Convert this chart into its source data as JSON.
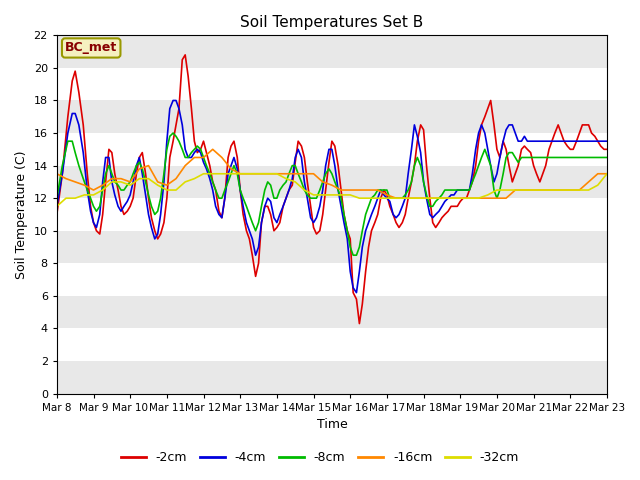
{
  "title": "Soil Temperatures Set B",
  "xlabel": "Time",
  "ylabel": "Soil Temperature (C)",
  "annotation": "BC_met",
  "ylim": [
    0,
    22
  ],
  "yticks": [
    0,
    2,
    4,
    6,
    8,
    10,
    12,
    14,
    16,
    18,
    20,
    22
  ],
  "x_labels": [
    "Mar 8",
    "Mar 9",
    "Mar 10",
    "Mar 11",
    "Mar 12",
    "Mar 13",
    "Mar 14",
    "Mar 15",
    "Mar 16",
    "Mar 17",
    "Mar 18",
    "Mar 19",
    "Mar 20",
    "Mar 21",
    "Mar 22",
    "Mar 23"
  ],
  "fig_bg": "#ffffff",
  "plot_bg": "#ffffff",
  "band_colors": [
    "#e8e8e8",
    "#ffffff"
  ],
  "series": {
    "-2cm": {
      "color": "#dd0000",
      "lw": 1.2,
      "data_x": [
        0,
        0.15,
        0.3,
        0.42,
        0.5,
        0.6,
        0.72,
        0.83,
        0.92,
        1.0,
        1.08,
        1.17,
        1.25,
        1.33,
        1.42,
        1.5,
        1.58,
        1.67,
        1.75,
        1.83,
        1.92,
        2.0,
        2.08,
        2.17,
        2.25,
        2.33,
        2.42,
        2.5,
        2.58,
        2.67,
        2.75,
        2.83,
        2.92,
        3.0,
        3.08,
        3.17,
        3.25,
        3.33,
        3.42,
        3.5,
        3.58,
        3.67,
        3.75,
        3.83,
        3.92,
        4.0,
        4.08,
        4.17,
        4.25,
        4.33,
        4.42,
        4.5,
        4.58,
        4.67,
        4.75,
        4.83,
        4.92,
        5.0,
        5.08,
        5.17,
        5.25,
        5.33,
        5.42,
        5.5,
        5.58,
        5.67,
        5.75,
        5.83,
        5.92,
        6.0,
        6.08,
        6.17,
        6.25,
        6.33,
        6.42,
        6.5,
        6.58,
        6.67,
        6.75,
        6.83,
        6.92,
        7.0,
        7.08,
        7.17,
        7.25,
        7.33,
        7.42,
        7.5,
        7.58,
        7.67,
        7.75,
        7.83,
        7.92,
        8.0,
        8.08,
        8.17,
        8.25,
        8.33,
        8.42,
        8.5,
        8.58,
        8.67,
        8.75,
        8.83,
        8.92,
        9.0,
        9.08,
        9.17,
        9.25,
        9.33,
        9.42,
        9.5,
        9.58,
        9.67,
        9.75,
        9.83,
        9.92,
        10.0,
        10.08,
        10.17,
        10.25,
        10.33,
        10.42,
        10.5,
        10.58,
        10.67,
        10.75,
        10.83,
        10.92,
        11.0,
        11.08,
        11.17,
        11.25,
        11.33,
        11.42,
        11.5,
        11.58,
        11.67,
        11.75,
        11.83,
        11.92,
        12.0,
        12.08,
        12.17,
        12.25,
        12.33,
        12.42,
        12.5,
        12.58,
        12.67,
        12.75,
        12.83,
        12.92,
        13.0,
        13.08,
        13.17,
        13.25,
        13.33,
        13.42,
        13.5,
        13.58,
        13.67,
        13.75,
        13.83,
        13.92,
        14.0,
        14.08,
        14.17,
        14.25,
        14.33,
        14.42,
        14.5,
        14.58,
        14.67,
        14.75,
        14.83,
        14.92,
        15.0
      ],
      "data_y": [
        11.0,
        13.5,
        17.0,
        19.2,
        19.8,
        18.5,
        16.5,
        13.5,
        11.5,
        10.5,
        10.0,
        9.8,
        11.0,
        13.0,
        15.0,
        14.8,
        13.5,
        12.5,
        11.5,
        11.0,
        11.2,
        11.5,
        12.0,
        13.5,
        14.5,
        14.8,
        13.5,
        12.0,
        10.8,
        10.0,
        9.5,
        9.8,
        10.5,
        12.0,
        14.5,
        15.5,
        16.5,
        17.5,
        20.5,
        20.8,
        19.5,
        17.5,
        15.5,
        14.8,
        15.0,
        15.5,
        14.8,
        14.0,
        13.0,
        12.5,
        11.2,
        10.8,
        12.0,
        14.5,
        15.2,
        15.5,
        14.5,
        12.5,
        11.0,
        10.0,
        9.5,
        8.5,
        7.2,
        8.0,
        10.5,
        11.5,
        11.5,
        11.0,
        10.0,
        10.2,
        10.5,
        11.5,
        12.0,
        12.5,
        12.8,
        14.2,
        15.5,
        15.2,
        14.5,
        13.0,
        11.5,
        10.2,
        9.8,
        10.0,
        11.0,
        12.5,
        14.2,
        15.5,
        15.2,
        14.0,
        12.5,
        11.0,
        10.0,
        9.5,
        6.2,
        5.8,
        4.3,
        5.5,
        7.5,
        9.0,
        10.0,
        10.5,
        11.0,
        12.0,
        12.5,
        12.2,
        11.5,
        11.0,
        10.5,
        10.2,
        10.5,
        11.0,
        12.0,
        13.0,
        14.0,
        15.5,
        16.5,
        16.2,
        14.0,
        12.0,
        10.5,
        10.2,
        10.5,
        10.8,
        11.0,
        11.2,
        11.5,
        11.5,
        11.5,
        11.8,
        12.0,
        12.0,
        12.5,
        13.0,
        14.0,
        15.5,
        16.5,
        17.0,
        17.5,
        18.0,
        16.5,
        15.0,
        14.5,
        15.5,
        15.0,
        14.0,
        13.0,
        13.5,
        14.0,
        15.0,
        15.2,
        15.0,
        14.8,
        14.0,
        13.5,
        13.0,
        13.5,
        14.0,
        15.0,
        15.5,
        16.0,
        16.5,
        16.0,
        15.5,
        15.2,
        15.0,
        15.0,
        15.5,
        16.0,
        16.5,
        16.5,
        16.5,
        16.0,
        15.8,
        15.5,
        15.2,
        15.0,
        15.0
      ]
    },
    "-4cm": {
      "color": "#0000dd",
      "lw": 1.2,
      "data_x": [
        0,
        0.15,
        0.3,
        0.42,
        0.5,
        0.6,
        0.72,
        0.83,
        0.92,
        1.0,
        1.08,
        1.17,
        1.25,
        1.33,
        1.42,
        1.5,
        1.58,
        1.67,
        1.75,
        1.83,
        1.92,
        2.0,
        2.08,
        2.17,
        2.25,
        2.33,
        2.42,
        2.5,
        2.58,
        2.67,
        2.75,
        2.83,
        2.92,
        3.0,
        3.08,
        3.17,
        3.25,
        3.33,
        3.42,
        3.5,
        3.58,
        3.67,
        3.75,
        3.83,
        3.92,
        4.0,
        4.08,
        4.17,
        4.25,
        4.33,
        4.42,
        4.5,
        4.58,
        4.67,
        4.75,
        4.83,
        4.92,
        5.0,
        5.08,
        5.17,
        5.25,
        5.33,
        5.42,
        5.5,
        5.58,
        5.67,
        5.75,
        5.83,
        5.92,
        6.0,
        6.08,
        6.17,
        6.25,
        6.33,
        6.42,
        6.5,
        6.58,
        6.67,
        6.75,
        6.83,
        6.92,
        7.0,
        7.08,
        7.17,
        7.25,
        7.33,
        7.42,
        7.5,
        7.58,
        7.67,
        7.75,
        7.83,
        7.92,
        8.0,
        8.08,
        8.17,
        8.25,
        8.33,
        8.42,
        8.5,
        8.58,
        8.67,
        8.75,
        8.83,
        8.92,
        9.0,
        9.08,
        9.17,
        9.25,
        9.33,
        9.42,
        9.5,
        9.58,
        9.67,
        9.75,
        9.83,
        9.92,
        10.0,
        10.08,
        10.17,
        10.25,
        10.33,
        10.42,
        10.5,
        10.58,
        10.67,
        10.75,
        10.83,
        10.92,
        11.0,
        11.08,
        11.17,
        11.25,
        11.33,
        11.42,
        11.5,
        11.58,
        11.67,
        11.75,
        11.83,
        11.92,
        12.0,
        12.08,
        12.17,
        12.25,
        12.33,
        12.42,
        12.5,
        12.58,
        12.67,
        12.75,
        12.83,
        12.92,
        13.0,
        13.08,
        13.17,
        13.25,
        13.33,
        13.42,
        13.5,
        13.58,
        13.67,
        13.75,
        13.83,
        13.92,
        14.0,
        14.08,
        14.17,
        14.25,
        14.33,
        14.42,
        14.5,
        14.58,
        14.67,
        14.75,
        14.83,
        14.92,
        15.0
      ],
      "data_y": [
        11.5,
        13.5,
        16.0,
        17.2,
        17.2,
        16.5,
        14.8,
        12.5,
        11.2,
        10.5,
        10.2,
        11.0,
        13.0,
        14.5,
        14.5,
        13.0,
        12.2,
        11.5,
        11.2,
        11.5,
        11.8,
        12.2,
        13.0,
        14.0,
        14.5,
        13.5,
        12.2,
        11.0,
        10.2,
        9.5,
        9.8,
        11.0,
        13.0,
        15.5,
        17.5,
        18.0,
        18.0,
        17.5,
        16.5,
        15.0,
        14.5,
        14.5,
        14.8,
        15.0,
        14.8,
        14.2,
        13.8,
        13.2,
        12.5,
        11.5,
        11.0,
        10.8,
        12.0,
        13.5,
        14.0,
        14.5,
        13.8,
        12.5,
        11.5,
        10.5,
        10.0,
        9.5,
        8.5,
        9.0,
        10.5,
        11.5,
        12.0,
        11.8,
        10.8,
        10.5,
        11.0,
        11.5,
        12.0,
        12.5,
        13.2,
        14.5,
        15.0,
        14.5,
        13.0,
        12.0,
        10.8,
        10.5,
        10.8,
        11.5,
        12.5,
        14.0,
        15.0,
        15.0,
        14.0,
        12.5,
        11.5,
        10.5,
        9.5,
        7.5,
        6.5,
        6.2,
        7.5,
        9.0,
        10.0,
        10.5,
        11.0,
        11.5,
        12.0,
        12.5,
        12.2,
        12.0,
        11.8,
        11.0,
        10.8,
        11.0,
        11.5,
        12.0,
        13.5,
        15.0,
        16.5,
        15.8,
        14.8,
        13.0,
        12.0,
        11.0,
        10.8,
        11.0,
        11.2,
        11.5,
        11.8,
        12.0,
        12.2,
        12.2,
        12.5,
        12.5,
        12.5,
        12.5,
        12.5,
        13.5,
        15.0,
        16.0,
        16.5,
        16.0,
        15.0,
        14.0,
        13.0,
        13.5,
        14.5,
        15.5,
        16.2,
        16.5,
        16.5,
        16.0,
        15.5,
        15.5,
        15.8,
        15.5,
        15.5,
        15.5,
        15.5,
        15.5,
        15.5,
        15.5,
        15.5,
        15.5,
        15.5,
        15.5,
        15.5,
        15.5,
        15.5,
        15.5,
        15.5,
        15.5,
        15.5,
        15.5,
        15.5,
        15.5,
        15.5,
        15.5,
        15.5,
        15.5,
        15.5,
        15.5
      ]
    },
    "-8cm": {
      "color": "#00bb00",
      "lw": 1.2,
      "data_x": [
        0,
        0.15,
        0.3,
        0.42,
        0.5,
        0.6,
        0.72,
        0.83,
        0.92,
        1.0,
        1.08,
        1.17,
        1.25,
        1.33,
        1.42,
        1.5,
        1.58,
        1.67,
        1.75,
        1.83,
        1.92,
        2.0,
        2.08,
        2.17,
        2.25,
        2.33,
        2.42,
        2.5,
        2.58,
        2.67,
        2.75,
        2.83,
        2.92,
        3.0,
        3.08,
        3.17,
        3.25,
        3.33,
        3.42,
        3.5,
        3.58,
        3.67,
        3.75,
        3.83,
        3.92,
        4.0,
        4.08,
        4.17,
        4.25,
        4.33,
        4.42,
        4.5,
        4.58,
        4.67,
        4.75,
        4.83,
        4.92,
        5.0,
        5.08,
        5.17,
        5.25,
        5.33,
        5.42,
        5.5,
        5.58,
        5.67,
        5.75,
        5.83,
        5.92,
        6.0,
        6.08,
        6.17,
        6.25,
        6.33,
        6.42,
        6.5,
        6.58,
        6.67,
        6.75,
        6.83,
        6.92,
        7.0,
        7.08,
        7.17,
        7.25,
        7.33,
        7.42,
        7.5,
        7.58,
        7.67,
        7.75,
        7.83,
        7.92,
        8.0,
        8.08,
        8.17,
        8.25,
        8.33,
        8.42,
        8.5,
        8.58,
        8.67,
        8.75,
        8.83,
        8.92,
        9.0,
        9.08,
        9.17,
        9.25,
        9.33,
        9.42,
        9.5,
        9.58,
        9.67,
        9.75,
        9.83,
        9.92,
        10.0,
        10.08,
        10.17,
        10.25,
        10.33,
        10.42,
        10.5,
        10.58,
        10.67,
        10.75,
        10.83,
        10.92,
        11.0,
        11.08,
        11.17,
        11.25,
        11.33,
        11.42,
        11.5,
        11.58,
        11.67,
        11.75,
        11.83,
        11.92,
        12.0,
        12.08,
        12.17,
        12.25,
        12.33,
        12.42,
        12.5,
        12.58,
        12.67,
        12.75,
        12.83,
        12.92,
        13.0,
        13.08,
        13.17,
        13.25,
        13.33,
        13.42,
        13.5,
        13.58,
        13.67,
        13.75,
        13.83,
        13.92,
        14.0,
        14.08,
        14.17,
        14.25,
        14.33,
        14.42,
        14.5,
        14.58,
        14.67,
        14.75,
        14.83,
        14.92,
        15.0
      ],
      "data_y": [
        12.0,
        14.0,
        15.5,
        15.5,
        14.8,
        14.0,
        13.2,
        12.5,
        12.0,
        11.5,
        11.2,
        11.5,
        12.5,
        13.5,
        14.0,
        13.5,
        13.0,
        12.8,
        12.5,
        12.5,
        12.8,
        13.0,
        13.5,
        14.0,
        14.2,
        13.8,
        13.0,
        12.2,
        11.5,
        11.0,
        11.2,
        12.0,
        13.5,
        15.0,
        15.8,
        16.0,
        15.8,
        15.5,
        15.0,
        14.5,
        14.5,
        14.8,
        15.0,
        15.2,
        15.0,
        14.5,
        14.0,
        13.5,
        13.0,
        12.5,
        12.0,
        12.0,
        12.5,
        13.0,
        13.5,
        14.0,
        13.5,
        12.5,
        12.0,
        11.5,
        11.0,
        10.5,
        10.0,
        10.5,
        11.5,
        12.5,
        13.0,
        12.8,
        12.0,
        12.0,
        12.5,
        12.8,
        13.0,
        13.5,
        14.0,
        14.0,
        13.5,
        13.0,
        12.5,
        12.2,
        12.0,
        12.0,
        12.0,
        12.5,
        13.0,
        13.5,
        13.8,
        13.5,
        13.0,
        12.5,
        12.0,
        11.0,
        10.0,
        9.0,
        8.5,
        8.5,
        9.0,
        10.0,
        11.0,
        11.5,
        12.0,
        12.2,
        12.5,
        12.5,
        12.5,
        12.5,
        12.0,
        12.0,
        12.0,
        12.0,
        12.0,
        12.2,
        12.5,
        13.0,
        14.0,
        14.5,
        14.0,
        13.0,
        12.2,
        11.5,
        11.5,
        11.8,
        12.0,
        12.2,
        12.5,
        12.5,
        12.5,
        12.5,
        12.5,
        12.5,
        12.5,
        12.5,
        12.5,
        13.0,
        13.5,
        14.0,
        14.5,
        15.0,
        14.5,
        14.0,
        12.5,
        12.0,
        12.5,
        13.5,
        14.5,
        14.8,
        14.8,
        14.5,
        14.2,
        14.5,
        14.5,
        14.5,
        14.5,
        14.5,
        14.5,
        14.5,
        14.5,
        14.5,
        14.5,
        14.5,
        14.5,
        14.5,
        14.5,
        14.5,
        14.5,
        14.5,
        14.5,
        14.5,
        14.5,
        14.5,
        14.5,
        14.5,
        14.5,
        14.5,
        14.5,
        14.5,
        14.5,
        14.5
      ]
    },
    "-16cm": {
      "color": "#ff8800",
      "lw": 1.2,
      "data_x": [
        0,
        0.25,
        0.5,
        0.75,
        1.0,
        1.25,
        1.5,
        1.75,
        2.0,
        2.25,
        2.5,
        2.75,
        3.0,
        3.25,
        3.5,
        3.75,
        4.0,
        4.25,
        4.5,
        4.75,
        5.0,
        5.25,
        5.5,
        5.75,
        6.0,
        6.25,
        6.5,
        6.75,
        7.0,
        7.25,
        7.5,
        7.75,
        8.0,
        8.25,
        8.5,
        8.75,
        9.0,
        9.25,
        9.5,
        9.75,
        10.0,
        10.25,
        10.5,
        10.75,
        11.0,
        11.25,
        11.5,
        11.75,
        12.0,
        12.25,
        12.5,
        12.75,
        13.0,
        13.25,
        13.5,
        13.75,
        14.0,
        14.25,
        14.5,
        14.75,
        15.0
      ],
      "data_y": [
        13.5,
        13.2,
        13.0,
        12.8,
        12.5,
        12.8,
        13.2,
        13.2,
        13.0,
        13.8,
        14.0,
        13.0,
        12.8,
        13.2,
        14.0,
        14.5,
        14.5,
        15.0,
        14.5,
        13.8,
        13.5,
        13.5,
        13.5,
        13.5,
        13.5,
        13.5,
        13.5,
        13.5,
        13.5,
        13.0,
        12.8,
        12.5,
        12.5,
        12.5,
        12.5,
        12.5,
        12.2,
        12.0,
        12.0,
        12.0,
        12.0,
        12.0,
        12.0,
        12.0,
        12.0,
        12.0,
        12.0,
        12.0,
        12.0,
        12.0,
        12.5,
        12.5,
        12.5,
        12.5,
        12.5,
        12.5,
        12.5,
        12.5,
        13.0,
        13.5,
        13.5
      ]
    },
    "-32cm": {
      "color": "#dddd00",
      "lw": 1.2,
      "data_x": [
        0,
        0.25,
        0.5,
        0.75,
        1.0,
        1.25,
        1.5,
        1.75,
        2.0,
        2.25,
        2.5,
        2.75,
        3.0,
        3.25,
        3.5,
        3.75,
        4.0,
        4.25,
        4.5,
        4.75,
        5.0,
        5.25,
        5.5,
        5.75,
        6.0,
        6.25,
        6.5,
        6.75,
        7.0,
        7.25,
        7.5,
        7.75,
        8.0,
        8.25,
        8.5,
        8.75,
        9.0,
        9.25,
        9.5,
        9.75,
        10.0,
        10.25,
        10.5,
        10.75,
        11.0,
        11.25,
        11.5,
        11.75,
        12.0,
        12.25,
        12.5,
        12.75,
        13.0,
        13.25,
        13.5,
        13.75,
        14.0,
        14.25,
        14.5,
        14.75,
        15.0
      ],
      "data_y": [
        11.5,
        12.0,
        12.0,
        12.2,
        12.2,
        12.5,
        13.0,
        13.0,
        12.8,
        13.2,
        13.2,
        12.8,
        12.5,
        12.5,
        13.0,
        13.2,
        13.5,
        13.5,
        13.5,
        13.5,
        13.5,
        13.5,
        13.5,
        13.5,
        13.5,
        13.2,
        13.0,
        12.5,
        12.2,
        12.2,
        12.2,
        12.2,
        12.2,
        12.0,
        12.0,
        12.0,
        12.0,
        12.0,
        12.0,
        12.0,
        12.0,
        12.0,
        12.0,
        12.0,
        12.0,
        12.0,
        12.0,
        12.2,
        12.5,
        12.5,
        12.5,
        12.5,
        12.5,
        12.5,
        12.5,
        12.5,
        12.5,
        12.5,
        12.5,
        12.8,
        13.5
      ]
    }
  },
  "legend": [
    {
      "label": "-2cm",
      "color": "#dd0000"
    },
    {
      "label": "-4cm",
      "color": "#0000dd"
    },
    {
      "label": "-8cm",
      "color": "#00bb00"
    },
    {
      "label": "-16cm",
      "color": "#ff8800"
    },
    {
      "label": "-32cm",
      "color": "#dddd00"
    }
  ]
}
